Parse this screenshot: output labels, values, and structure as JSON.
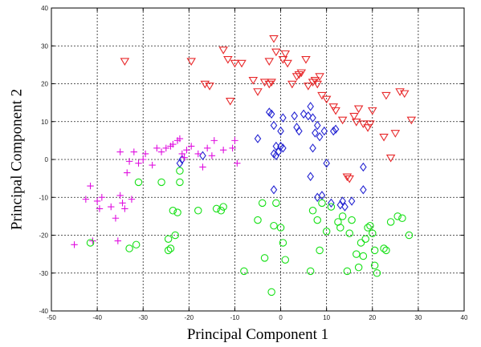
{
  "chart_data": {
    "type": "scatter",
    "title": "",
    "xlabel": "Principal Component 1",
    "ylabel": "Principal Component 2",
    "xlim": [
      -50,
      40
    ],
    "ylim": [
      -40,
      40
    ],
    "xticks": [
      -50,
      -40,
      -30,
      -20,
      -10,
      0,
      10,
      20,
      30,
      40
    ],
    "yticks": [
      -40,
      -30,
      -20,
      -10,
      0,
      10,
      20,
      30,
      40
    ],
    "grid": true,
    "legend": "none",
    "series": [
      {
        "marker": "triangle-down",
        "color": "#e8282a",
        "points": [
          [
            -34,
            26
          ],
          [
            -19.5,
            26
          ],
          [
            -16.5,
            20
          ],
          [
            -15.5,
            19.5
          ],
          [
            -12.5,
            29
          ],
          [
            -11.5,
            26.5
          ],
          [
            -10,
            25.5
          ],
          [
            -11,
            15.5
          ],
          [
            -8.5,
            25.5
          ],
          [
            -6,
            21
          ],
          [
            -5,
            18
          ],
          [
            -3.5,
            20.5
          ],
          [
            -2.5,
            20
          ],
          [
            -2,
            20.5
          ],
          [
            -1.5,
            32
          ],
          [
            -1,
            28.5
          ],
          [
            -2.5,
            26
          ],
          [
            0.5,
            26.5
          ],
          [
            1,
            28
          ],
          [
            1.5,
            25.5
          ],
          [
            2.5,
            20
          ],
          [
            3.5,
            22
          ],
          [
            4,
            22.5
          ],
          [
            4.5,
            23
          ],
          [
            5.5,
            26.5
          ],
          [
            6,
            19.5
          ],
          [
            7,
            20.5
          ],
          [
            7.5,
            21
          ],
          [
            8,
            20
          ],
          [
            8.5,
            22
          ],
          [
            9,
            17
          ],
          [
            10,
            16
          ],
          [
            11.5,
            14
          ],
          [
            12,
            13
          ],
          [
            13.5,
            10.5
          ],
          [
            14.5,
            -4.5
          ],
          [
            15,
            -5
          ],
          [
            16,
            11.5
          ],
          [
            16.5,
            10
          ],
          [
            17,
            13.5
          ],
          [
            18,
            9.5
          ],
          [
            19,
            8.5
          ],
          [
            19.5,
            9.5
          ],
          [
            20,
            13
          ],
          [
            22.5,
            6
          ],
          [
            23,
            17
          ],
          [
            24,
            0.5
          ],
          [
            25,
            7
          ],
          [
            26,
            18
          ],
          [
            27,
            17.5
          ],
          [
            28.5,
            10.5
          ]
        ]
      },
      {
        "marker": "diamond",
        "color": "#2424d2",
        "points": [
          [
            -22,
            -1
          ],
          [
            -21.5,
            0
          ],
          [
            -17,
            1
          ],
          [
            -5,
            5.5
          ],
          [
            -2.5,
            12.5
          ],
          [
            -2,
            12
          ],
          [
            -1.5,
            9
          ],
          [
            -1.5,
            1.5
          ],
          [
            -1,
            3.5
          ],
          [
            -1,
            1
          ],
          [
            -0.5,
            2
          ],
          [
            0,
            7.5
          ],
          [
            0,
            3.5
          ],
          [
            0.5,
            3
          ],
          [
            0.5,
            11
          ],
          [
            -1.5,
            -8
          ],
          [
            3,
            11.5
          ],
          [
            3.5,
            8.5
          ],
          [
            4,
            7.5
          ],
          [
            5,
            12
          ],
          [
            6,
            11.5
          ],
          [
            6.5,
            14
          ],
          [
            6.5,
            -4.5
          ],
          [
            7,
            11
          ],
          [
            7,
            3
          ],
          [
            7.5,
            7
          ],
          [
            8,
            9
          ],
          [
            8,
            -10
          ],
          [
            8.5,
            6
          ],
          [
            9,
            -9.5
          ],
          [
            9.5,
            7.5
          ],
          [
            10,
            -1
          ],
          [
            11,
            -11.5
          ],
          [
            11.5,
            7.5
          ],
          [
            12,
            8
          ],
          [
            13,
            -12
          ],
          [
            13.5,
            -11
          ],
          [
            14,
            -12.5
          ],
          [
            15.5,
            -11
          ],
          [
            18,
            -8
          ],
          [
            18,
            -2
          ]
        ]
      },
      {
        "marker": "plus",
        "color": "#e010e0",
        "points": [
          [
            -45,
            -22.5
          ],
          [
            -42.5,
            -10.5
          ],
          [
            -41.5,
            -7
          ],
          [
            -41,
            -21.5
          ],
          [
            -40,
            -11
          ],
          [
            -39.5,
            -13
          ],
          [
            -39,
            -10
          ],
          [
            -37,
            -12.5
          ],
          [
            -36,
            -15.5
          ],
          [
            -35.5,
            -21.5
          ],
          [
            -35,
            2
          ],
          [
            -35,
            -9.5
          ],
          [
            -34.5,
            -11.5
          ],
          [
            -34,
            -13
          ],
          [
            -33.5,
            -3.5
          ],
          [
            -33,
            -0.5
          ],
          [
            -32.5,
            -10.5
          ],
          [
            -32,
            2
          ],
          [
            -31,
            -1
          ],
          [
            -30,
            0
          ],
          [
            -29.5,
            1.5
          ],
          [
            -28,
            -1.5
          ],
          [
            -27,
            3
          ],
          [
            -26,
            2
          ],
          [
            -25,
            3
          ],
          [
            -24,
            3.5
          ],
          [
            -23.5,
            4
          ],
          [
            -22.5,
            5
          ],
          [
            -22,
            5.5
          ],
          [
            -21.5,
            1.5
          ],
          [
            -21,
            0.5
          ],
          [
            -20.5,
            2.5
          ],
          [
            -19.5,
            3.5
          ],
          [
            -18,
            1.5
          ],
          [
            -17,
            -2
          ],
          [
            -16,
            3
          ],
          [
            -15,
            1
          ],
          [
            -14.5,
            5
          ],
          [
            -12.5,
            2.5
          ],
          [
            -10.5,
            3
          ],
          [
            -10,
            5
          ],
          [
            -9.5,
            -1
          ]
        ]
      },
      {
        "marker": "circle",
        "color": "#16e016",
        "points": [
          [
            -41.5,
            -22
          ],
          [
            -33,
            -23.5
          ],
          [
            -31.5,
            -22.5
          ],
          [
            -31,
            -6
          ],
          [
            -26,
            -6
          ],
          [
            -24.5,
            -21
          ],
          [
            -24.5,
            -24
          ],
          [
            -24,
            -23.5
          ],
          [
            -23.5,
            -13.5
          ],
          [
            -23,
            -20
          ],
          [
            -22.5,
            -14
          ],
          [
            -22,
            -3
          ],
          [
            -22,
            -6
          ],
          [
            -18,
            -13.5
          ],
          [
            -14,
            -13
          ],
          [
            -13,
            -13.5
          ],
          [
            -12.5,
            -12.5
          ],
          [
            -8,
            -29.5
          ],
          [
            -5,
            -16
          ],
          [
            -4,
            -11.5
          ],
          [
            -3.5,
            -26
          ],
          [
            -2,
            -35
          ],
          [
            -1.5,
            -17.5
          ],
          [
            -1,
            -11.5
          ],
          [
            0,
            -18
          ],
          [
            0.5,
            -22
          ],
          [
            1,
            -26.5
          ],
          [
            6.5,
            -29.5
          ],
          [
            7,
            -13.5
          ],
          [
            8,
            -16
          ],
          [
            8.5,
            -24
          ],
          [
            9,
            -11.5
          ],
          [
            10,
            -19
          ],
          [
            11,
            -12.5
          ],
          [
            12.5,
            -16.5
          ],
          [
            13,
            -18
          ],
          [
            13.5,
            -15
          ],
          [
            14.5,
            -29.5
          ],
          [
            15,
            -19.5
          ],
          [
            15.5,
            -16
          ],
          [
            16.5,
            -25
          ],
          [
            17,
            -28.5
          ],
          [
            17.5,
            -22
          ],
          [
            18,
            -25.5
          ],
          [
            18.5,
            -21
          ],
          [
            19,
            -18
          ],
          [
            19.5,
            -17.5
          ],
          [
            20,
            -19.5
          ],
          [
            20.5,
            -24
          ],
          [
            20.5,
            -28
          ],
          [
            21,
            -30
          ],
          [
            22.5,
            -23.5
          ],
          [
            23,
            -24
          ],
          [
            24,
            -16.5
          ],
          [
            25.5,
            -15
          ],
          [
            26.5,
            -15.5
          ],
          [
            28,
            -20
          ]
        ]
      }
    ]
  }
}
